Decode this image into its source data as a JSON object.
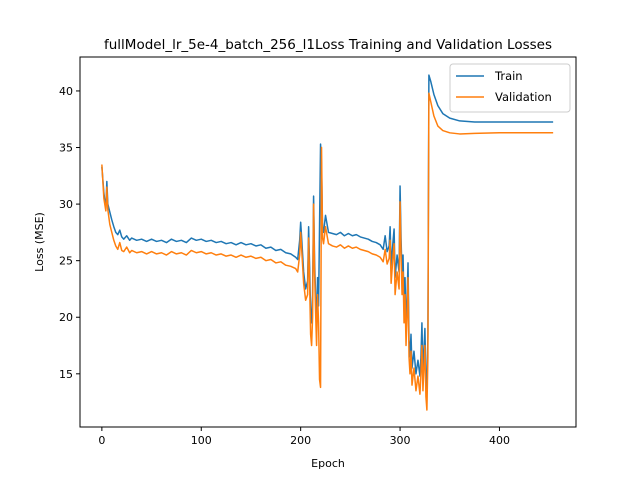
{
  "chart_data": {
    "type": "line",
    "title": "fullModel_lr_5e-4_batch_256_l1Loss Training and Validation Losses",
    "xlabel": "Epoch",
    "ylabel": "Loss (MSE)",
    "xlim": [
      -22,
      477
    ],
    "ylim": [
      10.3,
      43.0
    ],
    "xticks": [
      0,
      100,
      200,
      300,
      400
    ],
    "yticks": [
      15,
      20,
      25,
      30,
      35,
      40
    ],
    "grid": false,
    "legend_position": "top-right",
    "series": [
      {
        "name": "Train",
        "color": "#1f77b4",
        "points": [
          [
            0,
            33.3
          ],
          [
            2,
            31.0
          ],
          [
            4,
            29.6
          ],
          [
            5,
            32.0
          ],
          [
            6,
            30.0
          ],
          [
            8,
            29.3
          ],
          [
            10,
            28.6
          ],
          [
            12,
            28.0
          ],
          [
            14,
            27.5
          ],
          [
            16,
            27.3
          ],
          [
            18,
            27.7
          ],
          [
            20,
            27.1
          ],
          [
            22,
            26.9
          ],
          [
            25,
            27.2
          ],
          [
            28,
            26.8
          ],
          [
            30,
            27.0
          ],
          [
            35,
            26.8
          ],
          [
            40,
            26.9
          ],
          [
            45,
            26.7
          ],
          [
            50,
            26.9
          ],
          [
            55,
            26.7
          ],
          [
            60,
            26.8
          ],
          [
            65,
            26.6
          ],
          [
            70,
            26.9
          ],
          [
            75,
            26.7
          ],
          [
            80,
            26.8
          ],
          [
            85,
            26.6
          ],
          [
            90,
            27.0
          ],
          [
            95,
            26.8
          ],
          [
            100,
            26.9
          ],
          [
            105,
            26.7
          ],
          [
            110,
            26.8
          ],
          [
            115,
            26.6
          ],
          [
            120,
            26.7
          ],
          [
            125,
            26.5
          ],
          [
            130,
            26.6
          ],
          [
            135,
            26.4
          ],
          [
            140,
            26.6
          ],
          [
            145,
            26.4
          ],
          [
            150,
            26.5
          ],
          [
            155,
            26.3
          ],
          [
            160,
            26.4
          ],
          [
            165,
            26.1
          ],
          [
            170,
            26.2
          ],
          [
            175,
            25.9
          ],
          [
            180,
            26.0
          ],
          [
            185,
            25.7
          ],
          [
            190,
            25.6
          ],
          [
            195,
            25.3
          ],
          [
            197,
            25.1
          ],
          [
            199,
            26.8
          ],
          [
            200,
            28.4
          ],
          [
            201,
            27.0
          ],
          [
            203,
            24.0
          ],
          [
            205,
            22.5
          ],
          [
            207,
            23.2
          ],
          [
            208,
            28.0
          ],
          [
            209,
            24.5
          ],
          [
            210,
            20.5
          ],
          [
            211,
            19.5
          ],
          [
            212,
            22.0
          ],
          [
            213,
            30.7
          ],
          [
            214,
            25.0
          ],
          [
            215,
            22.0
          ],
          [
            216,
            19.0
          ],
          [
            217,
            23.5
          ],
          [
            218,
            21.0
          ],
          [
            220,
            35.3
          ],
          [
            221,
            33.5
          ],
          [
            222,
            28.0
          ],
          [
            223,
            27.5
          ],
          [
            225,
            29.0
          ],
          [
            228,
            27.5
          ],
          [
            232,
            27.4
          ],
          [
            236,
            27.3
          ],
          [
            240,
            27.5
          ],
          [
            244,
            27.2
          ],
          [
            248,
            27.4
          ],
          [
            252,
            27.2
          ],
          [
            256,
            27.3
          ],
          [
            260,
            27.1
          ],
          [
            264,
            27.0
          ],
          [
            268,
            26.9
          ],
          [
            272,
            26.7
          ],
          [
            276,
            26.6
          ],
          [
            280,
            26.4
          ],
          [
            283,
            26.0
          ],
          [
            285,
            27.2
          ],
          [
            287,
            25.8
          ],
          [
            289,
            26.3
          ],
          [
            290,
            28.0
          ],
          [
            291,
            24.5
          ],
          [
            293,
            26.8
          ],
          [
            294,
            27.8
          ],
          [
            295,
            23.5
          ],
          [
            297,
            25.5
          ],
          [
            299,
            24.0
          ],
          [
            300,
            31.6
          ],
          [
            301,
            27.0
          ],
          [
            302,
            23.5
          ],
          [
            303,
            25.5
          ],
          [
            304,
            21.0
          ],
          [
            305,
            23.5
          ],
          [
            306,
            19.0
          ],
          [
            307,
            21.5
          ],
          [
            308,
            24.8
          ],
          [
            309,
            18.0
          ],
          [
            310,
            16.5
          ],
          [
            311,
            18.5
          ],
          [
            312,
            15.5
          ],
          [
            314,
            17.0
          ],
          [
            316,
            15.0
          ],
          [
            318,
            16.2
          ],
          [
            320,
            14.8
          ],
          [
            321,
            16.5
          ],
          [
            322,
            19.5
          ],
          [
            323,
            15.0
          ],
          [
            324,
            17.0
          ],
          [
            325,
            19.0
          ],
          [
            326,
            14.5
          ],
          [
            327,
            13.5
          ],
          [
            328,
            18.5
          ],
          [
            329,
            41.4
          ],
          [
            331,
            40.8
          ],
          [
            334,
            39.7
          ],
          [
            338,
            38.7
          ],
          [
            343,
            38.0
          ],
          [
            350,
            37.6
          ],
          [
            360,
            37.35
          ],
          [
            375,
            37.25
          ],
          [
            400,
            37.25
          ],
          [
            430,
            37.25
          ],
          [
            454,
            37.25
          ]
        ]
      },
      {
        "name": "Validation",
        "color": "#ff7f0e",
        "points": [
          [
            0,
            33.5
          ],
          [
            2,
            30.5
          ],
          [
            4,
            29.4
          ],
          [
            5,
            31.5
          ],
          [
            6,
            29.5
          ],
          [
            8,
            28.2
          ],
          [
            10,
            27.5
          ],
          [
            12,
            26.8
          ],
          [
            14,
            26.3
          ],
          [
            16,
            26.0
          ],
          [
            18,
            26.6
          ],
          [
            20,
            25.9
          ],
          [
            22,
            25.8
          ],
          [
            25,
            26.2
          ],
          [
            28,
            25.7
          ],
          [
            30,
            25.9
          ],
          [
            35,
            25.7
          ],
          [
            40,
            25.8
          ],
          [
            45,
            25.6
          ],
          [
            50,
            25.8
          ],
          [
            55,
            25.6
          ],
          [
            60,
            25.7
          ],
          [
            65,
            25.5
          ],
          [
            70,
            25.8
          ],
          [
            75,
            25.6
          ],
          [
            80,
            25.7
          ],
          [
            85,
            25.5
          ],
          [
            90,
            25.9
          ],
          [
            95,
            25.7
          ],
          [
            100,
            25.8
          ],
          [
            105,
            25.6
          ],
          [
            110,
            25.7
          ],
          [
            115,
            25.5
          ],
          [
            120,
            25.6
          ],
          [
            125,
            25.4
          ],
          [
            130,
            25.5
          ],
          [
            135,
            25.3
          ],
          [
            140,
            25.5
          ],
          [
            145,
            25.3
          ],
          [
            150,
            25.4
          ],
          [
            155,
            25.2
          ],
          [
            160,
            25.3
          ],
          [
            165,
            25.0
          ],
          [
            170,
            25.1
          ],
          [
            175,
            24.8
          ],
          [
            180,
            24.9
          ],
          [
            185,
            24.6
          ],
          [
            190,
            24.5
          ],
          [
            195,
            24.3
          ],
          [
            197,
            24.0
          ],
          [
            199,
            25.5
          ],
          [
            200,
            27.5
          ],
          [
            201,
            26.0
          ],
          [
            203,
            23.0
          ],
          [
            205,
            21.5
          ],
          [
            207,
            22.0
          ],
          [
            208,
            27.0
          ],
          [
            209,
            23.0
          ],
          [
            210,
            18.5
          ],
          [
            211,
            17.5
          ],
          [
            212,
            20.0
          ],
          [
            213,
            30.0
          ],
          [
            214,
            24.0
          ],
          [
            215,
            20.5
          ],
          [
            216,
            17.5
          ],
          [
            217,
            22.0
          ],
          [
            218,
            19.5
          ],
          [
            219,
            14.5
          ],
          [
            220,
            13.8
          ],
          [
            221,
            35.0
          ],
          [
            222,
            27.0
          ],
          [
            223,
            26.5
          ],
          [
            225,
            28.0
          ],
          [
            228,
            26.5
          ],
          [
            232,
            26.3
          ],
          [
            236,
            26.2
          ],
          [
            240,
            26.4
          ],
          [
            244,
            26.1
          ],
          [
            248,
            26.3
          ],
          [
            252,
            26.1
          ],
          [
            256,
            26.2
          ],
          [
            260,
            26.0
          ],
          [
            264,
            25.9
          ],
          [
            268,
            25.8
          ],
          [
            272,
            25.6
          ],
          [
            276,
            25.5
          ],
          [
            280,
            25.3
          ],
          [
            283,
            24.9
          ],
          [
            285,
            26.0
          ],
          [
            287,
            24.7
          ],
          [
            289,
            25.2
          ],
          [
            290,
            26.8
          ],
          [
            291,
            23.0
          ],
          [
            293,
            25.5
          ],
          [
            294,
            26.5
          ],
          [
            295,
            22.0
          ],
          [
            297,
            24.0
          ],
          [
            299,
            22.5
          ],
          [
            300,
            30.2
          ],
          [
            301,
            25.5
          ],
          [
            302,
            22.0
          ],
          [
            303,
            24.0
          ],
          [
            304,
            19.5
          ],
          [
            305,
            22.0
          ],
          [
            306,
            17.5
          ],
          [
            307,
            20.0
          ],
          [
            308,
            23.5
          ],
          [
            309,
            16.5
          ],
          [
            310,
            15.0
          ],
          [
            311,
            17.0
          ],
          [
            312,
            14.0
          ],
          [
            314,
            15.5
          ],
          [
            316,
            13.5
          ],
          [
            318,
            14.8
          ],
          [
            320,
            13.2
          ],
          [
            321,
            15.0
          ],
          [
            322,
            17.5
          ],
          [
            323,
            13.5
          ],
          [
            324,
            15.5
          ],
          [
            325,
            17.5
          ],
          [
            326,
            13.0
          ],
          [
            327,
            11.8
          ],
          [
            328,
            16.5
          ],
          [
            329,
            39.8
          ],
          [
            331,
            39.0
          ],
          [
            334,
            37.8
          ],
          [
            338,
            36.9
          ],
          [
            343,
            36.5
          ],
          [
            350,
            36.3
          ],
          [
            360,
            36.2
          ],
          [
            375,
            36.25
          ],
          [
            400,
            36.3
          ],
          [
            430,
            36.3
          ],
          [
            454,
            36.3
          ]
        ]
      }
    ]
  }
}
